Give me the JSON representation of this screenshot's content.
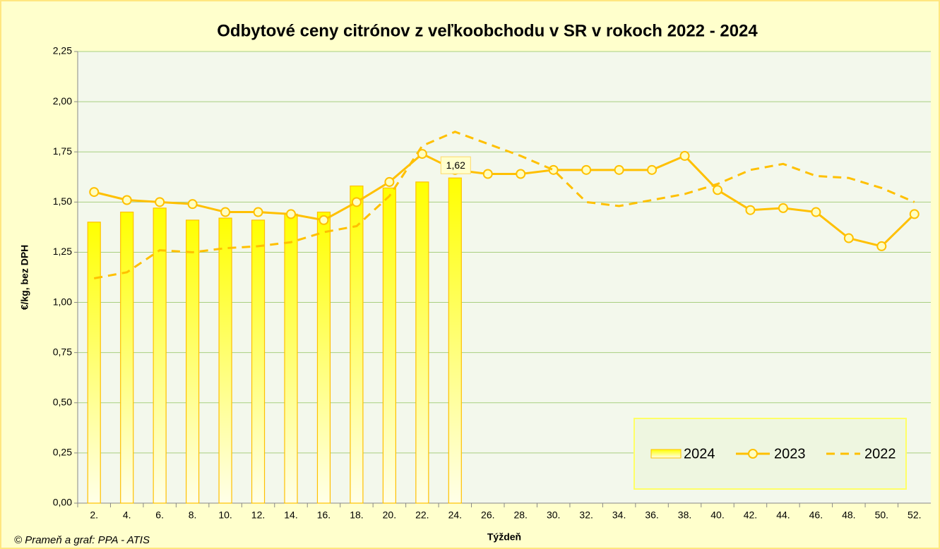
{
  "chart_data": {
    "type": "bar-line",
    "title": "Odbytové ceny citrónov z veľkoobchodu v SR v rokoch 2022 - 2024",
    "x_label": "Týždeň",
    "y_label": "€/kg, bez DPH",
    "source": "© Prameň a graf: PPA - ATIS",
    "categories": [
      "2.",
      "4.",
      "6.",
      "8.",
      "10.",
      "12.",
      "14.",
      "16.",
      "18.",
      "20.",
      "22.",
      "24.",
      "26.",
      "28.",
      "30.",
      "32.",
      "34.",
      "36.",
      "38.",
      "40.",
      "42.",
      "44.",
      "46.",
      "48.",
      "50.",
      "52."
    ],
    "series": [
      {
        "name": "2024",
        "type": "bar",
        "color": "#ffc000",
        "values": [
          1.4,
          1.45,
          1.47,
          1.41,
          1.42,
          1.41,
          1.44,
          1.45,
          1.58,
          1.57,
          1.6,
          1.62,
          null,
          null,
          null,
          null,
          null,
          null,
          null,
          null,
          null,
          null,
          null,
          null,
          null,
          null
        ],
        "value_labels": [
          null,
          null,
          null,
          null,
          null,
          null,
          null,
          null,
          null,
          null,
          null,
          "1,62",
          null,
          null,
          null,
          null,
          null,
          null,
          null,
          null,
          null,
          null,
          null,
          null,
          null,
          null
        ]
      },
      {
        "name": "2023",
        "type": "line",
        "color": "#ffc000",
        "marker": "circle",
        "values": [
          1.55,
          1.51,
          1.5,
          1.49,
          1.45,
          1.45,
          1.44,
          1.41,
          1.5,
          1.6,
          1.74,
          1.66,
          1.64,
          1.64,
          1.66,
          1.66,
          1.66,
          1.66,
          1.73,
          1.56,
          1.46,
          1.47,
          1.45,
          1.32,
          1.28,
          1.44
        ]
      },
      {
        "name": "2022",
        "type": "line",
        "color": "#ffc000",
        "dashed": true,
        "values": [
          1.12,
          1.15,
          1.26,
          1.25,
          1.27,
          1.28,
          1.3,
          1.35,
          1.38,
          1.53,
          1.78,
          1.85,
          1.79,
          1.73,
          1.66,
          1.5,
          1.48,
          1.51,
          1.54,
          1.59,
          1.66,
          1.69,
          1.63,
          1.62,
          1.57,
          1.5
        ]
      }
    ],
    "ylim": [
      0,
      2.25
    ],
    "yticks": [
      {
        "value": 0,
        "label": "0,00"
      },
      {
        "value": 0.25,
        "label": "0,25"
      },
      {
        "value": 0.5,
        "label": "0,50"
      },
      {
        "value": 0.75,
        "label": "0,75"
      },
      {
        "value": 1,
        "label": "1,00"
      },
      {
        "value": 1.25,
        "label": "1,25"
      },
      {
        "value": 1.5,
        "label": "1,50"
      },
      {
        "value": 1.75,
        "label": "1,75"
      },
      {
        "value": 2,
        "label": "2,00"
      },
      {
        "value": 2.25,
        "label": "2,25"
      }
    ],
    "grid": true,
    "legend": "bottom-right"
  }
}
